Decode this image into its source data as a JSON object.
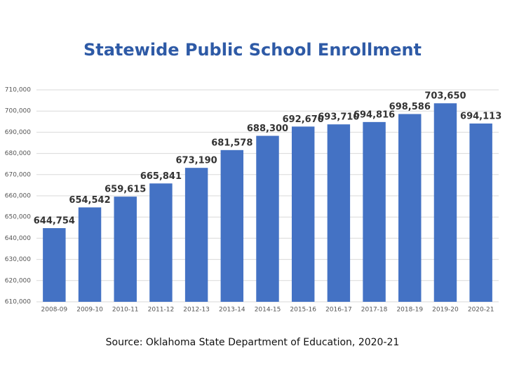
{
  "chart_data": {
    "type": "bar",
    "title": "Statewide Public School Enrollment",
    "source": "Source: Oklahoma State Department of Education, 2020-21",
    "categories": [
      "2008-09",
      "2009-10",
      "2010-11",
      "2011-12",
      "2012-13",
      "2013-14",
      "2014-15",
      "2015-16",
      "2016-17",
      "2017-18",
      "2018-19",
      "2019-20",
      "2020-21"
    ],
    "values": [
      644754,
      654542,
      659615,
      665841,
      673190,
      681578,
      688300,
      692670,
      693710,
      694816,
      698586,
      703650,
      694113
    ],
    "value_labels": [
      "644,754",
      "654,542",
      "659,615",
      "665,841",
      "673,190",
      "681,578",
      "688,300",
      "692,670",
      "693,710",
      "694,816",
      "698,586",
      "703,650",
      "694,113"
    ],
    "color": "#4472c4",
    "ylim": [
      610000,
      710000
    ],
    "yticks": [
      {
        "value": 610000,
        "label": "610,000"
      },
      {
        "value": 620000,
        "label": "620,000"
      },
      {
        "value": 630000,
        "label": "630,000"
      },
      {
        "value": 640000,
        "label": "640,000"
      },
      {
        "value": 650000,
        "label": "650,000"
      },
      {
        "value": 660000,
        "label": "660,000"
      },
      {
        "value": 670000,
        "label": "670,000"
      },
      {
        "value": 680000,
        "label": "680,000"
      },
      {
        "value": 690000,
        "label": "690,000"
      },
      {
        "value": 700000,
        "label": "700,000"
      },
      {
        "value": 710000,
        "label": "710,000"
      }
    ],
    "grid": true
  }
}
